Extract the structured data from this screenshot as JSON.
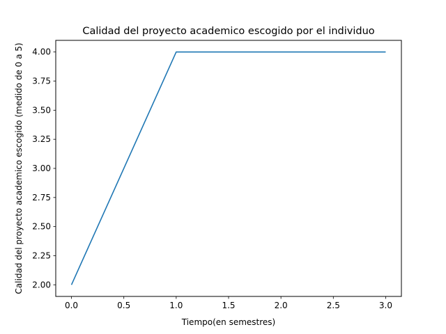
{
  "chart_data": {
    "type": "line",
    "title": "Calidad del proyecto academico escogido por el individuo",
    "xlabel": "Tiempo(en semestres)",
    "ylabel": "Calidad del proyecto academico escogido (medido de 0 a 5)",
    "x": [
      0,
      1,
      2,
      3
    ],
    "series": [
      {
        "values": [
          2,
          4,
          4,
          4
        ],
        "color": "#1f77b4"
      }
    ],
    "xlim": [
      -0.15,
      3.15
    ],
    "ylim": [
      1.9,
      4.1
    ],
    "xticks": [
      0,
      0.5,
      1,
      1.5,
      2,
      2.5,
      3
    ],
    "xtick_labels": [
      "0.0",
      "0.5",
      "1.0",
      "1.5",
      "2.0",
      "2.5",
      "3.0"
    ],
    "yticks": [
      2,
      2.25,
      2.5,
      2.75,
      3,
      3.25,
      3.5,
      3.75,
      4
    ],
    "ytick_labels": [
      "2.00",
      "2.25",
      "2.50",
      "2.75",
      "3.00",
      "3.25",
      "3.50",
      "3.75",
      "4.00"
    ],
    "grid": false,
    "legend": "none"
  }
}
